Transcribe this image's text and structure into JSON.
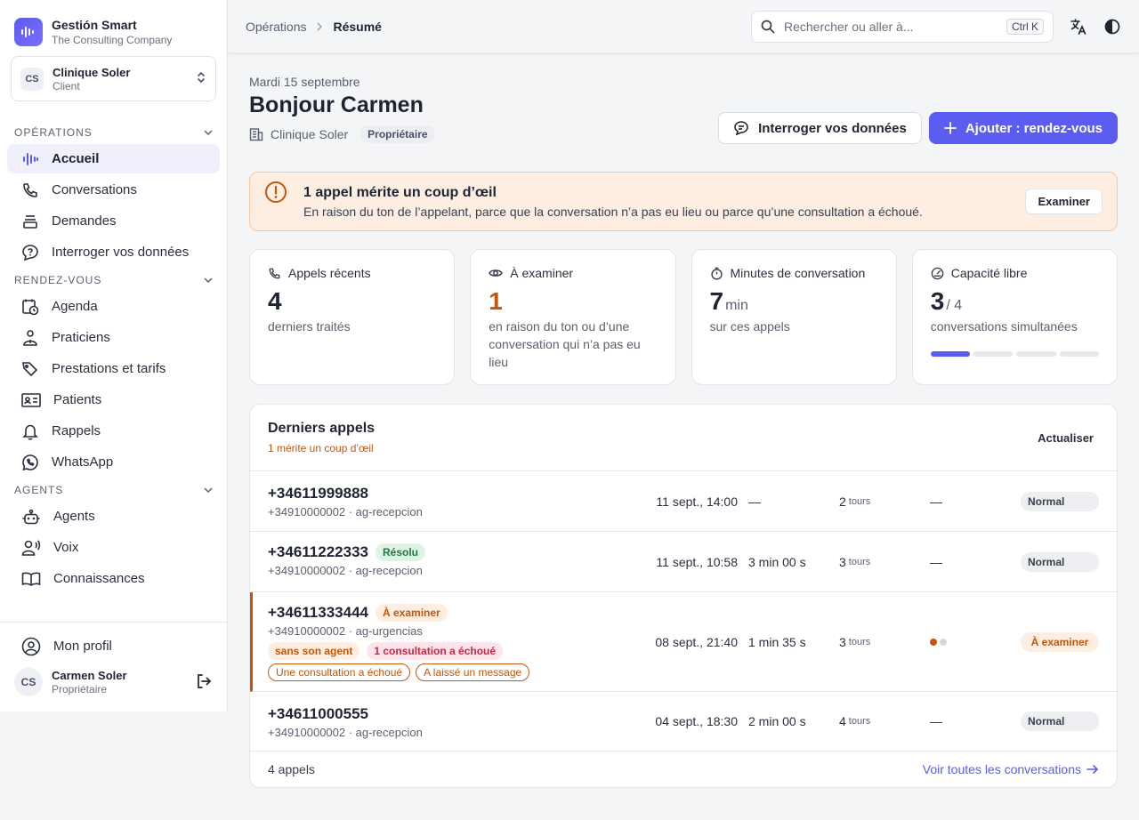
{
  "brand": {
    "name": "Gestión Smart",
    "company": "The Consulting Company",
    "accent": "#5b5cf0"
  },
  "org": {
    "initials": "CS",
    "name": "Clinique Soler",
    "role": "Client"
  },
  "nav": {
    "sections": [
      {
        "label": "OPÉRATIONS",
        "items": [
          "Accueil",
          "Conversations",
          "Demandes",
          "Interroger vos données"
        ]
      },
      {
        "label": "RENDEZ-VOUS",
        "items": [
          "Agenda",
          "Praticiens",
          "Prestations et tarifs",
          "Patients",
          "Rappels",
          "WhatsApp"
        ]
      },
      {
        "label": "AGENTS",
        "items": [
          "Agents",
          "Voix",
          "Connaissances"
        ]
      }
    ],
    "active": "Accueil"
  },
  "profile": {
    "label": "Mon profil",
    "initials": "CS",
    "name": "Carmen Soler",
    "role": "Propriétaire"
  },
  "topbar": {
    "breadcrumb": [
      "Opérations",
      "Résumé"
    ],
    "search_placeholder": "Rechercher ou aller à...",
    "shortcut": "Ctrl K",
    "icons": [
      "translate-icon",
      "dark-mode-icon"
    ]
  },
  "header": {
    "date": "Mardi 15 septembre",
    "greeting": "Bonjour Carmen",
    "org_name": "Clinique Soler",
    "role_badge": "Propriétaire",
    "btn_query": "Interroger vos données",
    "btn_add": "Ajouter : rendez-vous"
  },
  "alert": {
    "title": "1 appel mérite un coup d’œil",
    "text": "En raison du ton de l’appelant, parce que la conversation n’a pas eu lieu ou parce qu’une consultation a échoué.",
    "action": "Examiner"
  },
  "stats": [
    {
      "label": "Appels récents",
      "value": "4",
      "unit": "",
      "desc": "derniers traités"
    },
    {
      "label": "À examiner",
      "value": "1",
      "unit": "",
      "desc": "en raison du ton ou d’une conversation qui n’a pas eu lieu"
    },
    {
      "label": "Minutes de conversation",
      "value": "7",
      "unit": "min",
      "desc": "sur ces appels"
    },
    {
      "label": "Capacité libre",
      "value": "3",
      "unit": "/ 4",
      "desc": "conversations simultanées",
      "fill_fraction": 0.25
    }
  ],
  "calls": {
    "title": "Derniers appels",
    "subtitle": "1 mérite un coup d’œil",
    "refresh": "Actualiser",
    "turns_unit": "tours",
    "rows": [
      {
        "number": "+34611999888",
        "meta": "+34910000002 · ag-recepcion",
        "tag": "",
        "date": "11 sept., 14:00",
        "duration": "—",
        "turns": "2",
        "mood": "—",
        "status": "Normal"
      },
      {
        "number": "+34611222333",
        "meta": "+34910000002 · ag-recepcion",
        "tag": "Résolu",
        "date": "11 sept., 10:58",
        "duration": "3 min 00 s",
        "turns": "3",
        "mood": "—",
        "status": "Normal"
      },
      {
        "number": "+34611333444",
        "meta": "+34910000002 · ag-urgencias",
        "tag": "À examiner",
        "chips": [
          "sans son agent",
          "1 consultation a échoué"
        ],
        "outline_tags": [
          "Une consultation a échoué",
          "A laissé un message"
        ],
        "date": "08 sept., 21:40",
        "duration": "1 min 35 s",
        "turns": "3",
        "mood": "",
        "status": "À examiner"
      },
      {
        "number": "+34611000555",
        "meta": "+34910000002 · ag-recepcion",
        "tag": "",
        "date": "04 sept., 18:30",
        "duration": "2 min 00 s",
        "turns": "4",
        "mood": "—",
        "status": "Normal"
      }
    ],
    "count": "4 appels",
    "see_all": "Voir toutes les conversations"
  }
}
